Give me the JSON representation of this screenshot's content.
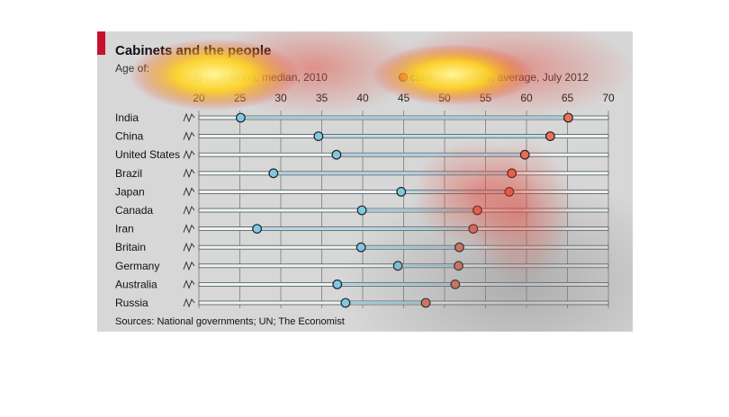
{
  "chart_data": {
    "type": "scatter",
    "title": "Cabinets and the people",
    "subtitle": "Age of:",
    "legend": [
      {
        "label": "population, median, 2010",
        "color": "#7fc9e3"
      },
      {
        "label": "cabinet ministers, average, July 2012",
        "color": "#e8735a"
      }
    ],
    "xlim": [
      20,
      70
    ],
    "x_ticks": [
      20,
      25,
      30,
      35,
      40,
      45,
      50,
      55,
      60,
      65,
      70
    ],
    "categories": [
      "India",
      "China",
      "United States",
      "Brazil",
      "Japan",
      "Canada",
      "Iran",
      "Britain",
      "Germany",
      "Australia",
      "Russia"
    ],
    "series": [
      {
        "name": "population, median, 2010",
        "values": [
          25.1,
          34.6,
          36.8,
          29.1,
          44.7,
          39.9,
          27.1,
          39.8,
          44.3,
          36.9,
          37.9
        ]
      },
      {
        "name": "cabinet ministers, average, July 2012",
        "values": [
          65.1,
          62.9,
          59.8,
          58.2,
          57.9,
          54.0,
          53.5,
          51.8,
          51.7,
          51.3,
          47.7
        ]
      }
    ],
    "colors": {
      "population": "#7fc9e3",
      "ministers": "#e8735a",
      "accent": "#c8102e"
    },
    "grid": true,
    "source": "Sources: National governments; UN; The Economist"
  }
}
